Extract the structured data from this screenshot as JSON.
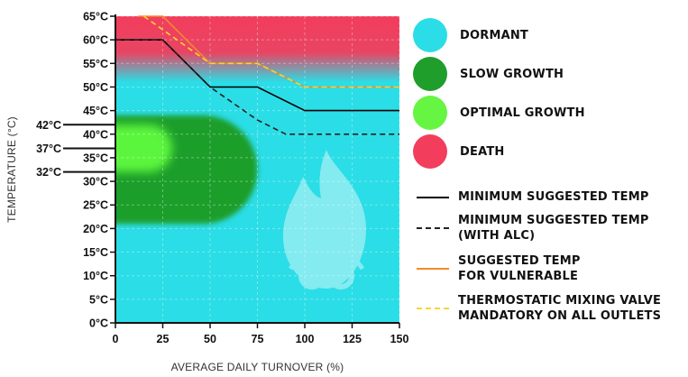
{
  "chart_data": {
    "type": "line",
    "xlabel": "AVERAGE DAILY TURNOVER (%)",
    "ylabel": "TEMPERATURE (°C)",
    "xlim": [
      0,
      150
    ],
    "ylim": [
      0,
      65
    ],
    "x_ticks": [
      "0",
      "25",
      "50",
      "75",
      "100",
      "125",
      "150"
    ],
    "x_tick_values": [
      0,
      25,
      50,
      75,
      100,
      125,
      150
    ],
    "y_ticks": [
      "0°C",
      "5°C",
      "10°C",
      "15°C",
      "20°C",
      "25°C",
      "30°C",
      "35°C",
      "40°C",
      "45°C",
      "50°C",
      "55°C",
      "60°C",
      "65°C"
    ],
    "y_tick_values": [
      0,
      5,
      10,
      15,
      20,
      25,
      30,
      35,
      40,
      45,
      50,
      55,
      60,
      65
    ],
    "grid": true,
    "legend_position": "right",
    "zones": [
      {
        "name": "DORMANT",
        "color": "#2bdde6",
        "y_range": [
          0,
          65
        ]
      },
      {
        "name": "DEATH",
        "color": "#f23d5c",
        "y_range": [
          55,
          65
        ]
      },
      {
        "name": "SLOW GROWTH",
        "color": "#1f9e2c",
        "x_range": [
          0,
          75
        ],
        "y_range": [
          21,
          44
        ]
      },
      {
        "name": "OPTIMAL GROWTH",
        "color": "#5cf53d",
        "x_range": [
          0,
          30
        ],
        "y_range": [
          32,
          42
        ]
      }
    ],
    "series": [
      {
        "name": "MINIMUM SUGGESTED TEMP",
        "color": "#000000",
        "style": "solid",
        "x": [
          0,
          25,
          50,
          75,
          100,
          150
        ],
        "y": [
          60,
          60,
          50,
          50,
          45,
          45
        ]
      },
      {
        "name": "MINIMUM SUGGESTED TEMP (WITH ALC)",
        "color": "#222222",
        "style": "dashed",
        "x": [
          0,
          25,
          50,
          75,
          90,
          150
        ],
        "y": [
          60,
          60,
          50,
          43,
          40,
          40
        ]
      },
      {
        "name": "SUGGESTED TEMP FOR VULNERABLE",
        "color": "#f08a2a",
        "style": "solid",
        "x": [
          12,
          25,
          50,
          75,
          100,
          150
        ],
        "y": [
          65,
          65,
          55,
          55,
          50,
          50
        ]
      },
      {
        "name": "THERMOSTATIC MIXING VALVE MANDATORY ON ALL OUTLETS",
        "color": "#f7d533",
        "style": "dashed",
        "x": [
          15,
          50,
          75,
          100,
          150
        ],
        "y": [
          65,
          55,
          55,
          50,
          50
        ]
      }
    ],
    "annotations": [
      {
        "text": "42°C",
        "y": 42
      },
      {
        "text": "37°C",
        "y": 37
      },
      {
        "text": "32°C",
        "y": 32
      }
    ]
  },
  "legend": {
    "zones": [
      {
        "label": "DORMANT",
        "color": "#2bdde6"
      },
      {
        "label": "SLOW GROWTH",
        "color": "#1f9e2c"
      },
      {
        "label": "OPTIMAL GROWTH",
        "color": "#66f542"
      },
      {
        "label": "DEATH",
        "color": "#f23d5c"
      }
    ],
    "lines": [
      {
        "label": "MINIMUM SUGGESTED TEMP",
        "color": "#000000",
        "style": "solid"
      },
      {
        "label": "MINIMUM SUGGESTED TEMP\n(WITH ALC)",
        "color": "#222222",
        "style": "dashed"
      },
      {
        "label": "SUGGESTED TEMP\nFOR VULNERABLE",
        "color": "#f08a2a",
        "style": "solid"
      },
      {
        "label": "THERMOSTATIC MIXING VALVE\nMANDATORY ON ALL OUTLETS",
        "color": "#f7d533",
        "style": "dashed"
      }
    ]
  },
  "logo": {
    "icon": "flame-with-glasses-icon",
    "color": "#ffffff"
  }
}
